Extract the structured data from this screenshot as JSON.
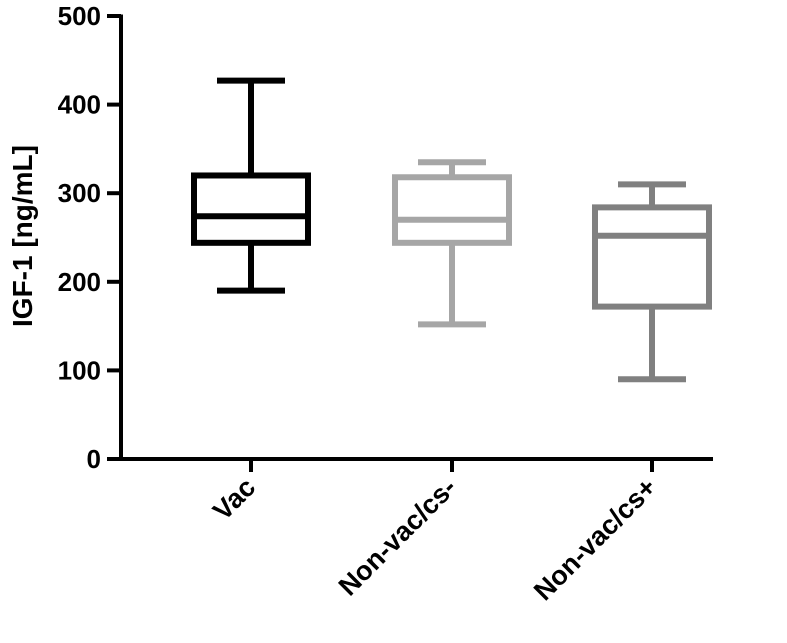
{
  "chart_data": {
    "type": "box",
    "ylabel": "IGF-1 [ng/mL]",
    "xlabel": "",
    "ylim": [
      0,
      500
    ],
    "yticks": [
      "0",
      "100",
      "200",
      "300",
      "400",
      "500"
    ],
    "grid": false,
    "categories": [
      "Vac",
      "Non-vac/cs-",
      "Non-vac/cs+"
    ],
    "boxes": [
      {
        "category": "Vac",
        "min": 190,
        "q1": 244,
        "median": 274,
        "q3": 320,
        "max": 427,
        "color": "#000000"
      },
      {
        "category": "Non-vac/cs-",
        "min": 152,
        "q1": 244,
        "median": 270,
        "q3": 318,
        "max": 335,
        "color": "#a6a6a6"
      },
      {
        "category": "Non-vac/cs+",
        "min": 90,
        "q1": 172,
        "median": 252,
        "q3": 284,
        "max": 310,
        "color": "#808080"
      }
    ]
  }
}
